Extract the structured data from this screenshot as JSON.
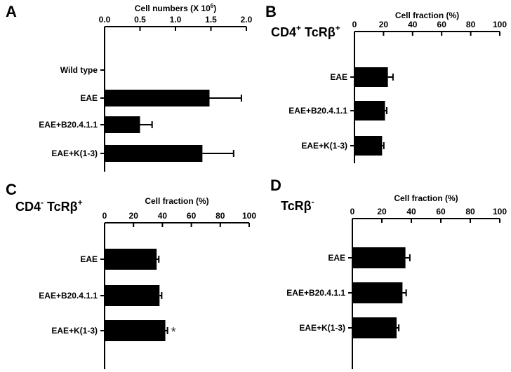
{
  "chart_data": [
    {
      "panel": "A",
      "type": "bar",
      "orientation": "horizontal",
      "subset_title": "",
      "xlabel": "Cell numbers (X 10",
      "xlabel_sup": "6",
      "xlabel_end": ")",
      "xlim": [
        0,
        2.0
      ],
      "ticks": [
        0,
        0.5,
        1.0,
        1.5,
        2.0
      ],
      "tick_labels": [
        "0.0",
        "0.5",
        "1.0",
        "1.5",
        "2.0"
      ],
      "categories": [
        "Wild type",
        "EAE",
        "EAE+B20.4.1.1",
        "EAE+K(1-3)"
      ],
      "values": [
        0,
        1.48,
        0.5,
        1.38
      ],
      "errors": [
        0,
        0.45,
        0.17,
        0.44
      ],
      "annotations": [
        "",
        "",
        "",
        ""
      ]
    },
    {
      "panel": "B",
      "type": "bar",
      "orientation": "horizontal",
      "subset_title": "CD4",
      "subset_sup1": "+",
      "subset_title2": " TcRβ",
      "subset_sup2": "+",
      "xlabel": "Cell fraction (%)",
      "xlim": [
        0,
        100
      ],
      "ticks": [
        0,
        20,
        40,
        60,
        80,
        100
      ],
      "tick_labels": [
        "0",
        "20",
        "40",
        "60",
        "80",
        "100"
      ],
      "categories": [
        "EAE",
        "EAE+B20.4.1.1",
        "EAE+K(1-3)"
      ],
      "values": [
        23,
        21,
        19
      ],
      "errors": [
        3.5,
        1.2,
        1.2
      ],
      "annotations": [
        "",
        "",
        ""
      ]
    },
    {
      "panel": "C",
      "type": "bar",
      "orientation": "horizontal",
      "subset_title": "CD4",
      "subset_sup1": "-",
      "subset_title2": " TcRβ",
      "subset_sup2": "+",
      "xlabel": "Cell fraction (%)",
      "xlim": [
        0,
        100
      ],
      "ticks": [
        0,
        20,
        40,
        60,
        80,
        100
      ],
      "tick_labels": [
        "0",
        "20",
        "40",
        "60",
        "80",
        "100"
      ],
      "categories": [
        "EAE",
        "EAE+B20.4.1.1",
        "EAE+K(1-3)"
      ],
      "values": [
        36,
        38,
        42
      ],
      "errors": [
        1.5,
        1.5,
        1.5
      ],
      "annotations": [
        "",
        "",
        "*"
      ]
    },
    {
      "panel": "D",
      "type": "bar",
      "orientation": "horizontal",
      "subset_title": "TcRβ",
      "subset_sup1": "-",
      "subset_title2": "",
      "subset_sup2": "",
      "xlabel": "Cell fraction (%)",
      "xlim": [
        0,
        100
      ],
      "ticks": [
        0,
        20,
        40,
        60,
        80,
        100
      ],
      "tick_labels": [
        "0",
        "20",
        "40",
        "60",
        "80",
        "100"
      ],
      "categories": [
        "EAE",
        "EAE+B20.4.1.1",
        "EAE+K(1-3)"
      ],
      "values": [
        36,
        34,
        30
      ],
      "errors": [
        3,
        2.5,
        1.5
      ],
      "annotations": [
        "",
        "",
        ""
      ]
    }
  ]
}
